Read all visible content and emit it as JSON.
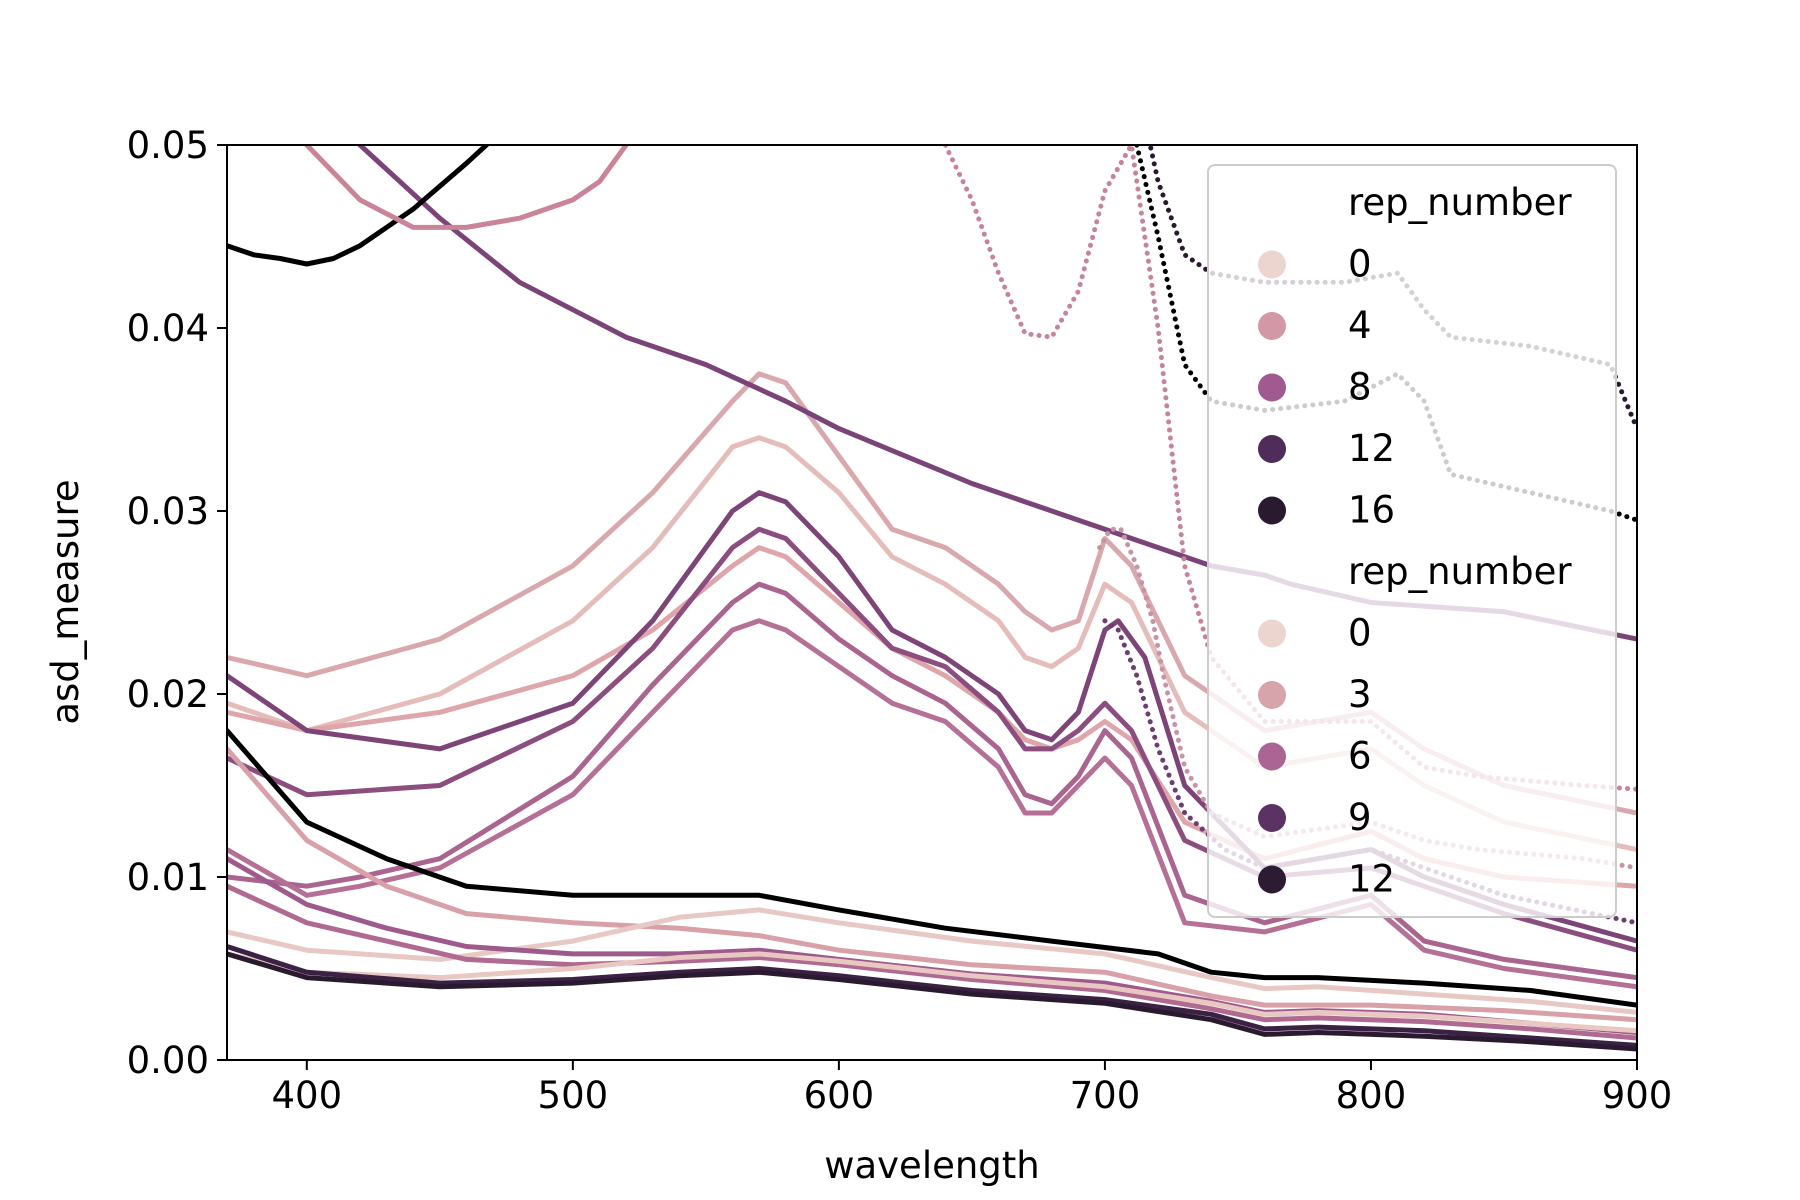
{
  "chart_data": {
    "type": "line",
    "title": "",
    "xlabel": "wavelength",
    "ylabel": "asd_measure",
    "xlim": [
      370,
      900
    ],
    "ylim": [
      0,
      0.05
    ],
    "xticks": [
      400,
      500,
      600,
      700,
      800,
      900
    ],
    "xtick_labels": [
      "400",
      "500",
      "600",
      "700",
      "800",
      "900"
    ],
    "yticks": [
      0,
      0.01,
      0.02,
      0.03,
      0.04,
      0.05
    ],
    "ytick_labels": [
      "0.00",
      "0.01",
      "0.02",
      "0.03",
      "0.04",
      "0.05"
    ],
    "grid": false,
    "legend": {
      "placement": "upper-right",
      "groups": [
        {
          "title": "rep_number",
          "entries": [
            {
              "label": "0",
              "color": "#ecd5cf"
            },
            {
              "label": "4",
              "color": "#d398a6"
            },
            {
              "label": "8",
              "color": "#a15a8f"
            },
            {
              "label": "12",
              "color": "#4f2c5a"
            },
            {
              "label": "16",
              "color": "#2a1a30"
            }
          ]
        },
        {
          "title": "rep_number",
          "entries": [
            {
              "label": "0",
              "color": "#ecd5cf"
            },
            {
              "label": "3",
              "color": "#d8a4ac"
            },
            {
              "label": "6",
              "color": "#ab6595"
            },
            {
              "label": "9",
              "color": "#5a3263"
            },
            {
              "label": "12",
              "color": "#2d1b33"
            }
          ]
        }
      ]
    },
    "series": [
      {
        "style": "solid",
        "color": "#d9a8ad",
        "x": [
          370,
          400,
          450,
          500,
          530,
          560,
          570,
          580,
          600,
          620,
          640,
          660,
          670,
          680,
          690,
          700,
          710,
          730,
          760,
          800,
          820,
          850,
          900
        ],
        "y": [
          0.022,
          0.021,
          0.023,
          0.027,
          0.031,
          0.036,
          0.0375,
          0.037,
          0.033,
          0.029,
          0.028,
          0.026,
          0.0245,
          0.0235,
          0.024,
          0.0285,
          0.027,
          0.021,
          0.018,
          0.019,
          0.017,
          0.015,
          0.0135
        ]
      },
      {
        "style": "solid",
        "color": "#e4bcba",
        "x": [
          370,
          400,
          450,
          500,
          530,
          560,
          570,
          580,
          600,
          620,
          640,
          660,
          670,
          680,
          690,
          700,
          710,
          730,
          760,
          800,
          820,
          850,
          900
        ],
        "y": [
          0.0195,
          0.018,
          0.02,
          0.024,
          0.028,
          0.0335,
          0.034,
          0.0335,
          0.031,
          0.0275,
          0.026,
          0.024,
          0.022,
          0.0215,
          0.0225,
          0.026,
          0.025,
          0.019,
          0.016,
          0.017,
          0.015,
          0.013,
          0.0115
        ]
      },
      {
        "style": "solid",
        "color": "#dea5ab",
        "x": [
          370,
          400,
          450,
          500,
          530,
          560,
          570,
          580,
          600,
          620,
          640,
          660,
          670,
          680,
          690,
          700,
          710,
          730,
          760,
          800,
          820,
          850,
          900
        ],
        "y": [
          0.019,
          0.018,
          0.019,
          0.021,
          0.0235,
          0.027,
          0.028,
          0.0275,
          0.025,
          0.0225,
          0.021,
          0.019,
          0.0175,
          0.017,
          0.0175,
          0.0185,
          0.0175,
          0.013,
          0.011,
          0.0125,
          0.011,
          0.01,
          0.0095
        ]
      },
      {
        "style": "solid",
        "color": "#7d4577",
        "x": [
          370,
          400,
          450,
          500,
          530,
          560,
          570,
          580,
          600,
          620,
          640,
          660,
          670,
          680,
          690,
          700,
          705,
          715,
          730,
          760,
          800,
          820,
          850,
          900
        ],
        "y": [
          0.021,
          0.018,
          0.017,
          0.0195,
          0.024,
          0.03,
          0.031,
          0.0305,
          0.0275,
          0.0235,
          0.022,
          0.02,
          0.018,
          0.0175,
          0.019,
          0.0235,
          0.024,
          0.022,
          0.015,
          0.0105,
          0.0115,
          0.01,
          0.0085,
          0.0065
        ]
      },
      {
        "style": "solid",
        "color": "#8b4e7f",
        "x": [
          370,
          400,
          450,
          500,
          530,
          560,
          570,
          580,
          600,
          620,
          640,
          660,
          670,
          680,
          690,
          700,
          710,
          730,
          760,
          800,
          820,
          850,
          900
        ],
        "y": [
          0.0165,
          0.0145,
          0.015,
          0.0185,
          0.0225,
          0.028,
          0.029,
          0.0285,
          0.0255,
          0.0225,
          0.0215,
          0.019,
          0.017,
          0.017,
          0.018,
          0.0195,
          0.018,
          0.012,
          0.01,
          0.0105,
          0.0095,
          0.008,
          0.006
        ]
      },
      {
        "style": "solid",
        "color": "#a9658f",
        "x": [
          370,
          400,
          420,
          450,
          500,
          530,
          560,
          570,
          580,
          600,
          620,
          640,
          660,
          670,
          680,
          690,
          700,
          710,
          730,
          760,
          800,
          820,
          850,
          900
        ],
        "y": [
          0.01,
          0.0095,
          0.01,
          0.011,
          0.0155,
          0.0205,
          0.025,
          0.026,
          0.0255,
          0.023,
          0.021,
          0.0195,
          0.017,
          0.0145,
          0.014,
          0.0155,
          0.018,
          0.0165,
          0.009,
          0.0075,
          0.009,
          0.0065,
          0.0055,
          0.0045
        ]
      },
      {
        "style": "solid",
        "color": "#b47096",
        "x": [
          370,
          400,
          420,
          450,
          500,
          530,
          560,
          570,
          580,
          600,
          620,
          640,
          660,
          670,
          680,
          690,
          700,
          710,
          730,
          760,
          800,
          820,
          850,
          900
        ],
        "y": [
          0.0115,
          0.009,
          0.0095,
          0.0105,
          0.0145,
          0.019,
          0.0235,
          0.024,
          0.0235,
          0.0215,
          0.0195,
          0.0185,
          0.016,
          0.0135,
          0.0135,
          0.015,
          0.0165,
          0.015,
          0.0075,
          0.007,
          0.0085,
          0.006,
          0.005,
          0.004
        ]
      },
      {
        "style": "solid",
        "color": "#7a4478",
        "x": [
          420,
          450,
          480,
          500,
          520,
          550,
          580,
          600,
          650,
          700,
          740,
          760,
          770,
          800,
          850,
          900
        ],
        "y": [
          0.05,
          0.046,
          0.0425,
          0.041,
          0.0395,
          0.038,
          0.036,
          0.0345,
          0.0315,
          0.029,
          0.027,
          0.0265,
          0.026,
          0.025,
          0.0245,
          0.023
        ]
      },
      {
        "style": "solid",
        "color": "#000000",
        "x": [
          370,
          380,
          390,
          400,
          410,
          420,
          440,
          460,
          475
        ],
        "y": [
          0.0445,
          0.044,
          0.0438,
          0.0435,
          0.0438,
          0.0445,
          0.0465,
          0.049,
          0.051
        ]
      },
      {
        "style": "solid",
        "color": "#c98597",
        "x": [
          370,
          400,
          420,
          440,
          460,
          480,
          500,
          510,
          520
        ],
        "y": [
          0.055,
          0.05,
          0.047,
          0.0455,
          0.0455,
          0.046,
          0.047,
          0.048,
          0.05
        ]
      },
      {
        "style": "solid",
        "color": "#000000",
        "x": [
          370,
          400,
          430,
          460,
          500,
          540,
          570,
          600,
          640,
          680,
          720,
          740,
          760,
          780,
          820,
          860,
          900
        ],
        "y": [
          0.018,
          0.013,
          0.011,
          0.0095,
          0.009,
          0.009,
          0.009,
          0.0082,
          0.0072,
          0.0065,
          0.0058,
          0.0048,
          0.0045,
          0.0045,
          0.0042,
          0.0038,
          0.003
        ]
      },
      {
        "style": "solid",
        "color": "#d8a0a8",
        "x": [
          370,
          400,
          430,
          460,
          500,
          540,
          570,
          600,
          650,
          700,
          740,
          760,
          780,
          800,
          850,
          900
        ],
        "y": [
          0.017,
          0.012,
          0.0095,
          0.008,
          0.0075,
          0.0072,
          0.0068,
          0.006,
          0.0052,
          0.0048,
          0.0035,
          0.003,
          0.003,
          0.003,
          0.0027,
          0.0022
        ]
      },
      {
        "style": "solid",
        "color": "#e8c8c4",
        "x": [
          370,
          400,
          450,
          500,
          540,
          570,
          600,
          650,
          700,
          740,
          760,
          780,
          820,
          860,
          900
        ],
        "y": [
          0.007,
          0.006,
          0.0055,
          0.0065,
          0.0078,
          0.0082,
          0.0075,
          0.0065,
          0.0058,
          0.0045,
          0.0039,
          0.004,
          0.0036,
          0.0032,
          0.0026
        ]
      },
      {
        "style": "solid",
        "color": "#9e5a8c",
        "x": [
          370,
          400,
          430,
          460,
          500,
          540,
          570,
          600,
          650,
          700,
          740,
          760,
          780,
          820,
          860,
          900
        ],
        "y": [
          0.011,
          0.0085,
          0.0072,
          0.0062,
          0.0058,
          0.0058,
          0.006,
          0.0055,
          0.0047,
          0.0042,
          0.0032,
          0.0026,
          0.0027,
          0.0025,
          0.002,
          0.0015
        ]
      },
      {
        "style": "solid",
        "color": "#b06a92",
        "x": [
          370,
          400,
          430,
          460,
          500,
          540,
          570,
          600,
          650,
          700,
          740,
          760,
          780,
          820,
          860,
          900
        ],
        "y": [
          0.0095,
          0.0075,
          0.0065,
          0.0055,
          0.0052,
          0.0054,
          0.0056,
          0.0052,
          0.0044,
          0.0038,
          0.0028,
          0.0022,
          0.0023,
          0.0021,
          0.0017,
          0.0012
        ]
      },
      {
        "style": "solid",
        "color": "#e9c8c2",
        "x": [
          370,
          400,
          450,
          500,
          540,
          570,
          600,
          650,
          700,
          740,
          760,
          780,
          820,
          860,
          900
        ],
        "y": [
          0.0058,
          0.0048,
          0.0045,
          0.005,
          0.0056,
          0.0058,
          0.0054,
          0.0046,
          0.004,
          0.0031,
          0.0025,
          0.0026,
          0.0024,
          0.002,
          0.0016
        ]
      },
      {
        "style": "solid",
        "color": "#3b2143",
        "x": [
          370,
          400,
          450,
          500,
          540,
          570,
          600,
          650,
          700,
          740,
          760,
          780,
          820,
          860,
          900
        ],
        "y": [
          0.0062,
          0.0048,
          0.0042,
          0.0044,
          0.0048,
          0.005,
          0.0046,
          0.0038,
          0.0033,
          0.0025,
          0.0017,
          0.0018,
          0.0016,
          0.0012,
          0.0008
        ]
      },
      {
        "style": "solid",
        "color": "#2a1a30",
        "x": [
          370,
          400,
          450,
          500,
          540,
          570,
          600,
          650,
          700,
          740,
          760,
          780,
          820,
          860,
          900
        ],
        "y": [
          0.0058,
          0.0045,
          0.004,
          0.0042,
          0.0046,
          0.0048,
          0.0044,
          0.0036,
          0.0031,
          0.0022,
          0.0014,
          0.0015,
          0.0013,
          0.001,
          0.0006
        ]
      },
      {
        "style": "dotted",
        "color": "#c6849a",
        "x": [
          620,
          640,
          650,
          660,
          670,
          680,
          690,
          700,
          710,
          720,
          730,
          740,
          760,
          800,
          820,
          840,
          880,
          900
        ],
        "y": [
          0.052,
          0.05,
          0.047,
          0.043,
          0.0397,
          0.0395,
          0.042,
          0.0475,
          0.05,
          0.04,
          0.027,
          0.022,
          0.0185,
          0.0185,
          0.016,
          0.0155,
          0.015,
          0.0148
        ]
      },
      {
        "style": "dotted",
        "color": "#c893a5",
        "x": [
          698,
          702,
          706,
          712,
          718,
          722,
          730,
          740,
          760,
          800,
          820,
          840,
          880,
          900
        ],
        "y": [
          0.028,
          0.029,
          0.029,
          0.027,
          0.024,
          0.021,
          0.016,
          0.0135,
          0.0122,
          0.013,
          0.012,
          0.0115,
          0.011,
          0.0105
        ]
      },
      {
        "style": "dotted",
        "color": "#000000",
        "x": [
          712,
          720,
          730,
          740,
          760,
          790,
          810,
          820,
          830,
          860,
          890,
          900
        ],
        "y": [
          0.05,
          0.045,
          0.038,
          0.036,
          0.0355,
          0.036,
          0.0375,
          0.036,
          0.032,
          0.031,
          0.03,
          0.0295
        ]
      },
      {
        "style": "dotted",
        "color": "#2a1a30",
        "x": [
          714,
          720,
          730,
          740,
          760,
          790,
          810,
          820,
          830,
          860,
          890,
          900
        ],
        "y": [
          0.052,
          0.048,
          0.044,
          0.043,
          0.0425,
          0.0425,
          0.043,
          0.041,
          0.0395,
          0.039,
          0.038,
          0.0345
        ]
      },
      {
        "style": "dotted",
        "color": "#6e3d70",
        "x": [
          700,
          705,
          712,
          720,
          730,
          745,
          760,
          800,
          820,
          850,
          900
        ],
        "y": [
          0.024,
          0.0235,
          0.021,
          0.017,
          0.0135,
          0.0115,
          0.0105,
          0.0115,
          0.0105,
          0.009,
          0.0075
        ]
      }
    ]
  }
}
